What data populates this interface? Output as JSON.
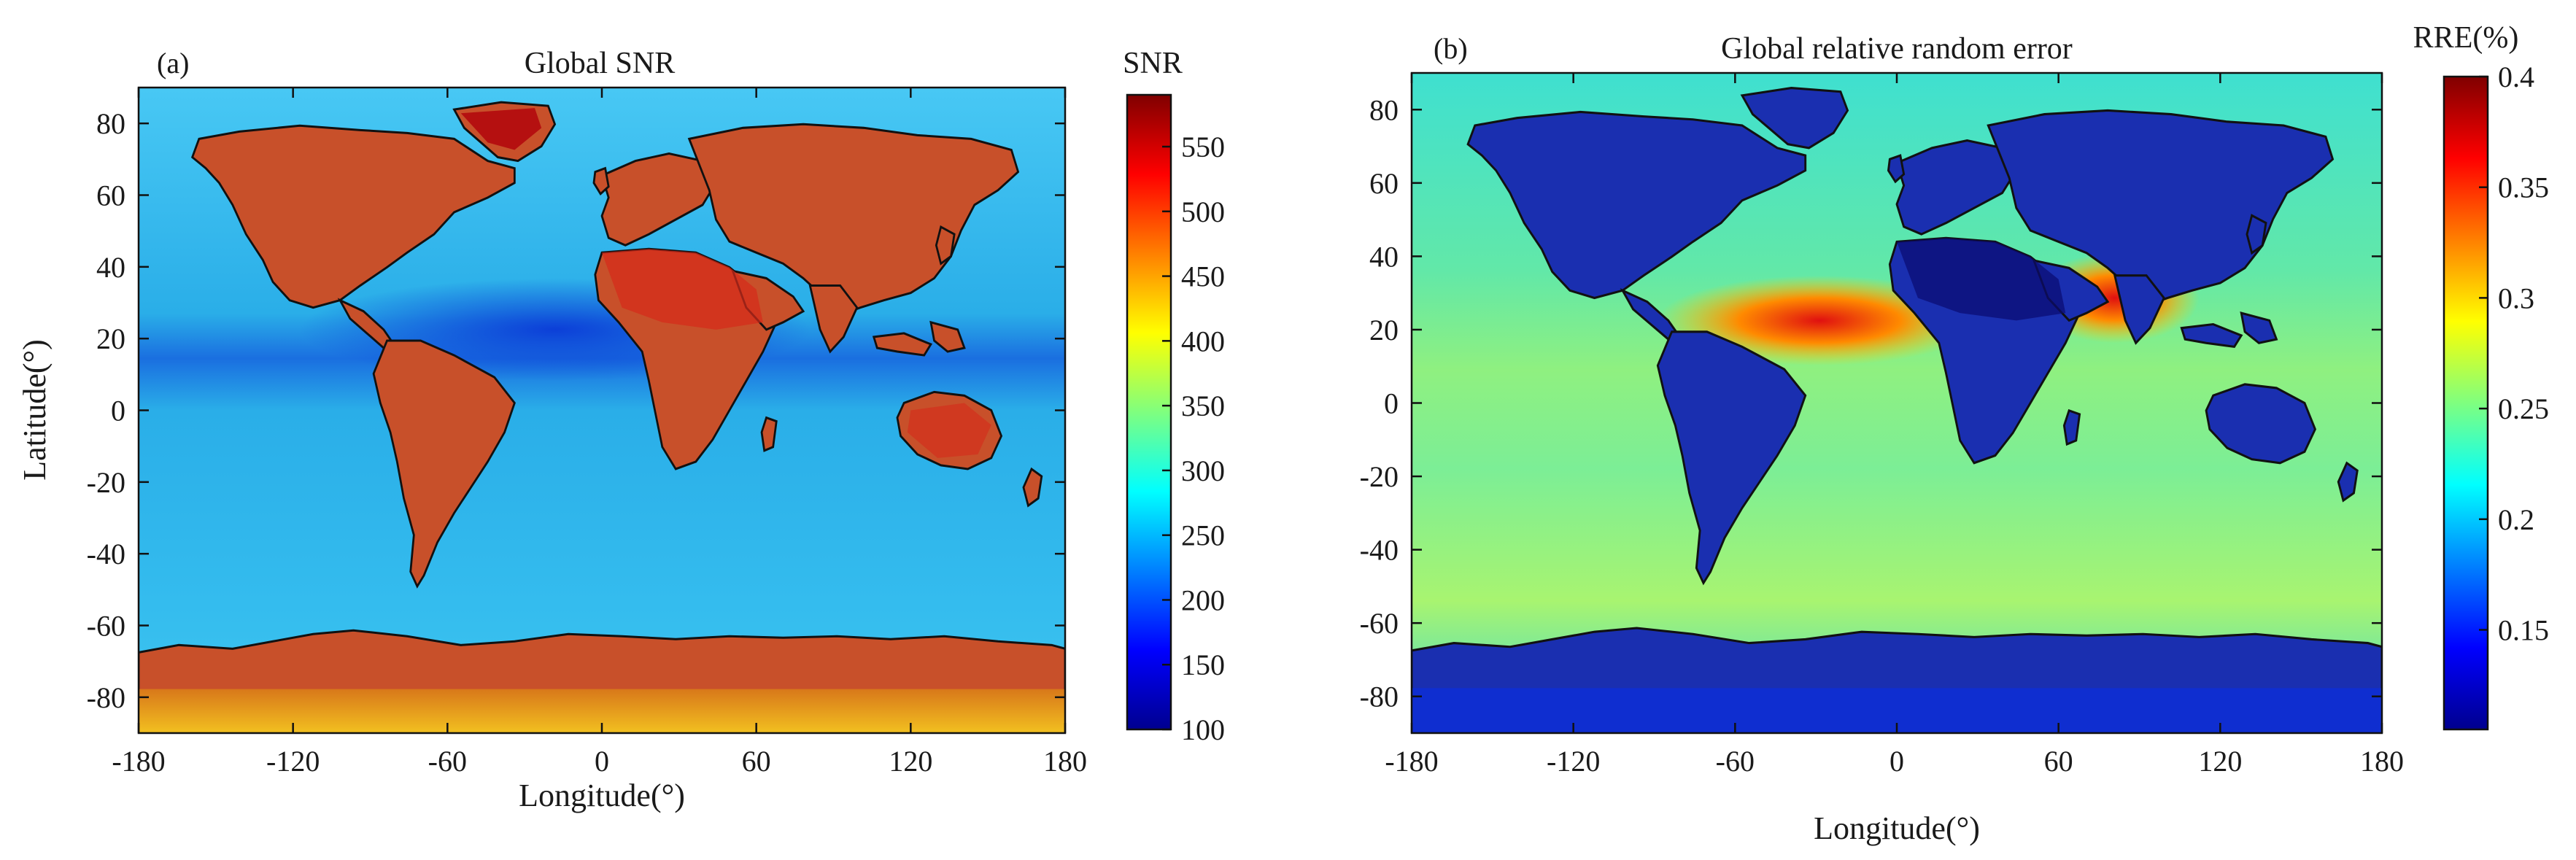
{
  "panels": [
    {
      "letter": "(a)",
      "title": "Global SNR",
      "xlabel": "Longitude(°)",
      "ylabel": "Latitude(°)",
      "xticks": [
        "-180",
        "-120",
        "-60",
        "0",
        "60",
        "120",
        "180"
      ],
      "yticks": [
        "80",
        "60",
        "40",
        "20",
        "0",
        "-20",
        "-40",
        "-60",
        "-80"
      ],
      "colorbar": {
        "title": "SNR",
        "ticks": [
          "550",
          "500",
          "450",
          "400",
          "350",
          "300",
          "250",
          "200",
          "150",
          "100"
        ]
      }
    },
    {
      "letter": "(b)",
      "title": "Global relative random error",
      "xlabel": "Longitude(°)",
      "ylabel": "",
      "xticks": [
        "-180",
        "-120",
        "-60",
        "0",
        "60",
        "120",
        "180"
      ],
      "yticks": [
        "80",
        "60",
        "40",
        "20",
        "0",
        "-20",
        "-40",
        "-60",
        "-80"
      ],
      "colorbar": {
        "title": "RRE(%)",
        "ticks": [
          "0.4",
          "0.35",
          "0.3",
          "0.25",
          "0.2",
          "0.15"
        ]
      }
    }
  ],
  "colors": {
    "ocean_a": "#2bb4f0",
    "ocean_b": "#38e0c8",
    "land_a": "#c8502a",
    "land_b": "#1a2fb0",
    "jet_low": "#00008f",
    "jet_high": "#800000"
  }
}
